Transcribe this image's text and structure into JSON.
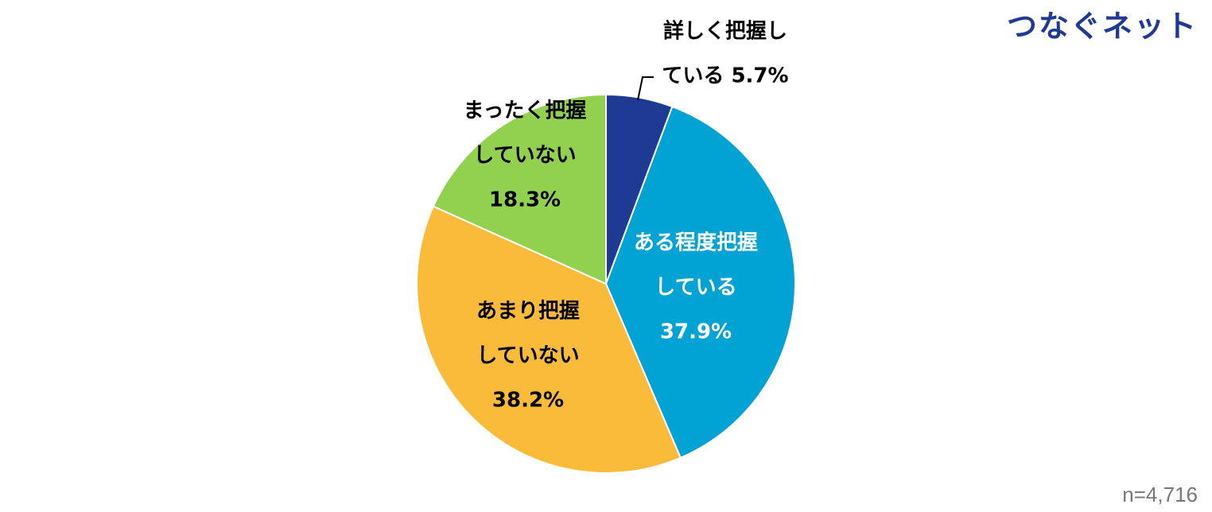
{
  "brand": {
    "name": "つなぐネット",
    "color": "#1f3a93"
  },
  "footer": {
    "sample": "n=4,716"
  },
  "chart_data": {
    "type": "pie",
    "title": "",
    "start_angle_deg": 0,
    "direction": "clockwise",
    "slices": [
      {
        "lines": [
          "詳しく把握し",
          "ている 5.7%"
        ],
        "label": "詳しく把握している",
        "value": 5.7,
        "color": "#1f3a93",
        "label_color": "#000000"
      },
      {
        "lines": [
          "ある程度把握",
          "している",
          "37.9%"
        ],
        "label": "ある程度把握している",
        "value": 37.9,
        "color": "#00a3d4",
        "label_color": "#ffffff"
      },
      {
        "lines": [
          "あまり把握",
          "していない",
          "38.2%"
        ],
        "label": "あまり把握していない",
        "value": 38.2,
        "color": "#fbbb3a",
        "label_color": "#000000"
      },
      {
        "lines": [
          "まったく把握",
          "していない",
          "18.3%"
        ],
        "label": "まったく把握していない",
        "value": 18.3,
        "color": "#92d050",
        "label_color": "#000000"
      }
    ]
  }
}
